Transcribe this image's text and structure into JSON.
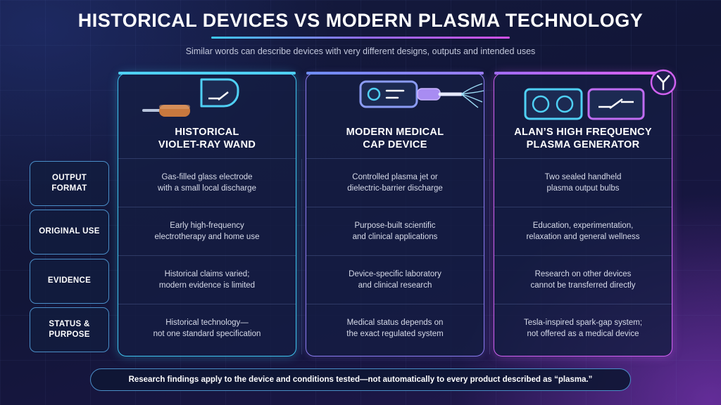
{
  "title": "HISTORICAL DEVICES VS MODERN PLASMA TECHNOLOGY",
  "subtitle": "Similar words can describe devices with very different designs, outputs and intended uses",
  "row_labels": [
    [
      "OUTPUT",
      "FORMAT"
    ],
    [
      "ORIGINAL USE"
    ],
    [
      "EVIDENCE"
    ],
    [
      "STATUS &",
      "PURPOSE"
    ]
  ],
  "columns": [
    {
      "heading": [
        "HISTORICAL",
        "VIOLET-RAY WAND"
      ],
      "icon": "violet-ray-wand-icon",
      "accent": "#3ec3ee",
      "cells": [
        [
          "Gas-filled glass electrode",
          "with a small local discharge"
        ],
        [
          "Early high-frequency",
          "electrotherapy and home use"
        ],
        [
          "Historical claims varied;",
          "modern evidence is limited"
        ],
        [
          "Historical technology—",
          "not one standard specification"
        ]
      ]
    },
    {
      "heading": [
        "MODERN MEDICAL",
        "CAP DEVICE"
      ],
      "icon": "cap-device-icon",
      "accent": "#8b7cf0",
      "cells": [
        [
          "Controlled plasma jet or",
          "dielectric-barrier discharge"
        ],
        [
          "Purpose-built scientific",
          "and clinical applications"
        ],
        [
          "Device-specific laboratory",
          "and clinical research"
        ],
        [
          "Medical status depends on",
          "the exact regulated system"
        ]
      ]
    },
    {
      "heading": [
        "ALAN’S HIGH FREQUENCY",
        "PLASMA GENERATOR"
      ],
      "icon": "plasma-generator-icon",
      "accent": "#d061f0",
      "cells": [
        [
          "Two sealed handheld",
          "plasma output bulbs"
        ],
        [
          "Education, experimentation,",
          "relaxation and general wellness"
        ],
        [
          "Research on other devices",
          "cannot be transferred directly"
        ],
        [
          "Tesla-inspired spark-gap system;",
          "not offered as a medical device"
        ]
      ]
    }
  ],
  "footer": "Research findings apply to the device and conditions tested—not automatically to every product described as “plasma.”"
}
